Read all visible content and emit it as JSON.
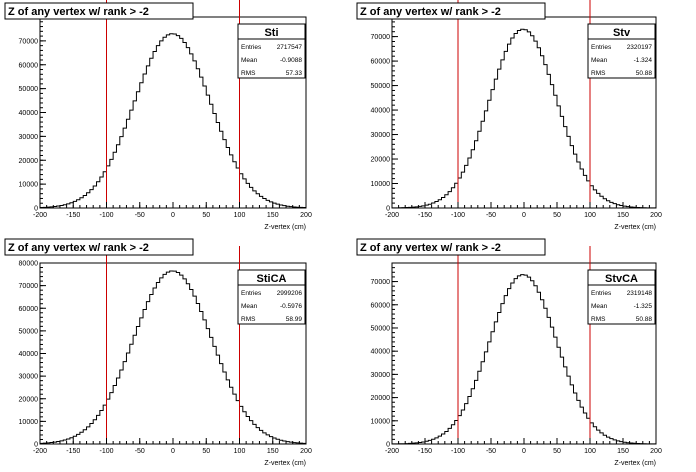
{
  "chart_data": [
    {
      "type": "histogram",
      "title": "Z of any vertex w/ rank > -2",
      "xlabel": "Z-vertex (cm)",
      "ylabel": "",
      "xlim": [
        -200,
        200
      ],
      "ylim": [
        0,
        80000
      ],
      "xticks": [
        -200,
        -150,
        -100,
        -50,
        0,
        50,
        100,
        150,
        200
      ],
      "yticks": [
        0,
        10000,
        20000,
        30000,
        40000,
        50000,
        60000,
        70000
      ],
      "vlines": [
        -100,
        100
      ],
      "vline_color": "#cc0000",
      "line_color": "#000000",
      "bin_width": 5,
      "stats": {
        "name": "Sti",
        "entries": "2717547",
        "mean": "-0.9088",
        "rms": "57.33"
      },
      "gaussian": {
        "peak": 73000,
        "mean": -0.9088,
        "sigma": 57.33
      }
    },
    {
      "type": "histogram",
      "title": "Z of any vertex w/ rank > -2",
      "xlabel": "Z-vertex (cm)",
      "ylabel": "",
      "xlim": [
        -200,
        200
      ],
      "ylim": [
        0,
        78000
      ],
      "xticks": [
        -200,
        -150,
        -100,
        -50,
        0,
        50,
        100,
        150,
        200
      ],
      "yticks": [
        0,
        10000,
        20000,
        30000,
        40000,
        50000,
        60000,
        70000
      ],
      "vlines": [
        -100,
        100
      ],
      "vline_color": "#cc0000",
      "line_color": "#000000",
      "bin_width": 5,
      "stats": {
        "name": "Stv",
        "entries": "2320197",
        "mean": "-1.324",
        "rms": "50.88"
      },
      "gaussian": {
        "peak": 73000,
        "mean": -1.324,
        "sigma": 50.88
      }
    },
    {
      "type": "histogram",
      "title": "Z of any vertex w/ rank > -2",
      "xlabel": "Z-vertex (cm)",
      "ylabel": "",
      "xlim": [
        -200,
        200
      ],
      "ylim": [
        0,
        80000
      ],
      "xticks": [
        -200,
        -150,
        -100,
        -50,
        0,
        50,
        100,
        150,
        200
      ],
      "yticks": [
        0,
        10000,
        20000,
        30000,
        40000,
        50000,
        60000,
        70000,
        80000
      ],
      "vlines": [
        -100,
        100
      ],
      "vline_color": "#cc0000",
      "line_color": "#000000",
      "bin_width": 5,
      "stats": {
        "name": "StiCA",
        "entries": "2999206",
        "mean": "-0.5976",
        "rms": "58.99"
      },
      "gaussian": {
        "peak": 76500,
        "mean": -0.5976,
        "sigma": 58.99
      }
    },
    {
      "type": "histogram",
      "title": "Z of any vertex w/ rank > -2",
      "xlabel": "Z-vertex (cm)",
      "ylabel": "",
      "xlim": [
        -200,
        200
      ],
      "ylim": [
        0,
        78000
      ],
      "xticks": [
        -200,
        -150,
        -100,
        -50,
        0,
        50,
        100,
        150,
        200
      ],
      "yticks": [
        0,
        10000,
        20000,
        30000,
        40000,
        50000,
        60000,
        70000
      ],
      "vlines": [
        -100,
        100
      ],
      "vline_color": "#cc0000",
      "line_color": "#000000",
      "bin_width": 5,
      "stats": {
        "name": "StvCA",
        "entries": "2319148",
        "mean": "-1.325",
        "rms": "50.88"
      },
      "gaussian": {
        "peak": 73000,
        "mean": -1.325,
        "sigma": 50.88
      }
    }
  ],
  "stat_labels": {
    "entries": "Entries",
    "mean": "Mean",
    "rms": "RMS"
  }
}
